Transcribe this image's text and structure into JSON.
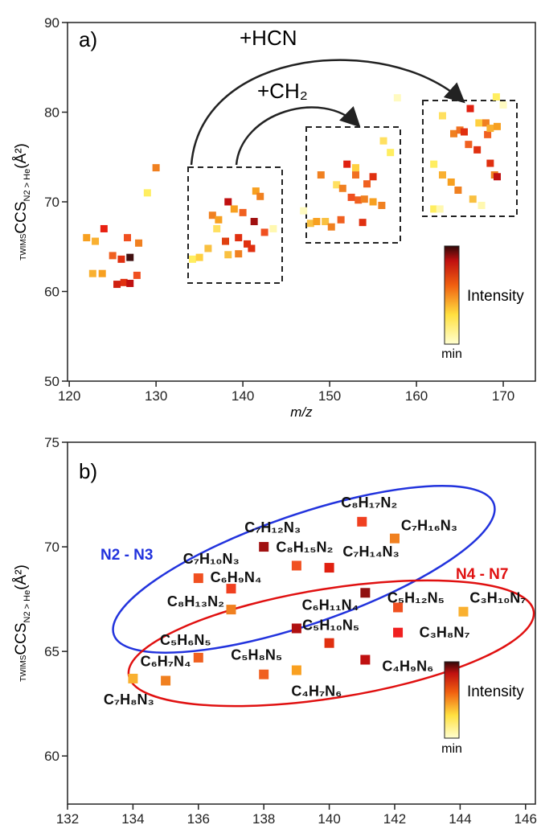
{
  "chart_data": [
    {
      "type": "scatter",
      "panel_label": "a)",
      "annotations": [
        "+HCN",
        "+CH₂"
      ],
      "x_label": "m/z",
      "y_label": {
        "prefix": "TWIMS",
        "main": "CCS",
        "sub": "N2 > He",
        "unit": "(Å²)"
      },
      "colorbar": {
        "label": "Intensity",
        "min_label": "min"
      },
      "xlim": [
        119.8,
        173.7
      ],
      "ylim": [
        50,
        90
      ],
      "xticks": [
        120,
        130,
        140,
        150,
        160,
        170
      ],
      "yticks": [
        50,
        60,
        70,
        80,
        90
      ],
      "x": [
        122,
        123,
        124,
        122.7,
        123.8,
        125,
        125.5,
        126.3,
        126,
        127,
        127,
        126.7,
        127.8,
        128,
        129,
        130,
        134.2,
        135,
        136,
        136.5,
        137.2,
        137,
        138,
        138.3,
        139,
        138.3,
        139.5,
        139.5,
        140,
        140.5,
        141.3,
        141,
        141.5,
        142,
        142.5,
        143.5,
        147,
        147.8,
        148.5,
        149,
        149.5,
        150.2,
        150.8,
        151.5,
        151.3,
        152,
        152.5,
        153,
        153,
        153.3,
        153.8,
        154.3,
        154,
        155,
        155,
        156.2,
        156,
        157,
        157.8,
        162,
        162,
        162.7,
        163,
        163,
        164,
        164.3,
        164.8,
        165,
        165.5,
        166,
        166.2,
        166.5,
        167,
        167.2,
        167.5,
        168,
        168.5,
        168.2,
        168.5,
        169,
        169.3,
        169.3,
        169.2,
        170
      ],
      "values": [
        66,
        65.6,
        67,
        62,
        62,
        64,
        60.8,
        61,
        63.6,
        63.8,
        60.9,
        66,
        61.8,
        65.4,
        71,
        73.8,
        63.6,
        63.8,
        64.8,
        68.5,
        68,
        67,
        65.6,
        70,
        69.2,
        64.1,
        66,
        64.2,
        68.8,
        65.3,
        67.8,
        64.8,
        71.2,
        70.6,
        66.6,
        67,
        69,
        67.6,
        67.8,
        73,
        67.8,
        67.2,
        71.9,
        71.5,
        68,
        74.2,
        70.5,
        73,
        73.8,
        70.2,
        67.7,
        72,
        70.3,
        72.8,
        70,
        76.8,
        69.6,
        75.5,
        81.6,
        74.2,
        69.2,
        69.2,
        79.6,
        73,
        72.2,
        77.6,
        71.3,
        78,
        77.8,
        76.4,
        80.4,
        70.3,
        75.8,
        78.8,
        69.6,
        78.8,
        74.3,
        77.5,
        78.2,
        73,
        72.8,
        78.4,
        81.7,
        80.8
      ],
      "colors": [
        "#f7a020",
        "#f9b030",
        "#e82010",
        "#f9b030",
        "#f7a020",
        "#f06020",
        "#d02010",
        "#e03010",
        "#e03010",
        "#401010",
        "#c01010",
        "#f05020",
        "#f05020",
        "#f08020",
        "#ffee60",
        "#f08020",
        "#ffee60",
        "#ffd040",
        "#f9c040",
        "#f08020",
        "#f7a020",
        "#ffe060",
        "#e04010",
        "#c01010",
        "#f7a020",
        "#f9c040",
        "#e03010",
        "#f08020",
        "#f06020",
        "#e03010",
        "#a01010",
        "#e03010",
        "#f7a020",
        "#f08020",
        "#f05020",
        "#fff8b0",
        "#fffac0",
        "#f9c040",
        "#f7a020",
        "#f08020",
        "#f9c040",
        "#f08020",
        "#ffe060",
        "#f08020",
        "#f06020",
        "#e02010",
        "#f05020",
        "#f07020",
        "#ffd040",
        "#f06020",
        "#e03010",
        "#f06020",
        "#f08020",
        "#e03010",
        "#f7a020",
        "#ffe060",
        "#f08020",
        "#ffee60",
        "#fffac0",
        "#ffee60",
        "#ffee60",
        "#fff8b0",
        "#ffe060",
        "#f9b030",
        "#f7a020",
        "#f08020",
        "#f08020",
        "#f07020",
        "#e03010",
        "#f06020",
        "#e02010",
        "#f9c040",
        "#e03010",
        "#ffd040",
        "#fff8b0",
        "#f08020",
        "#e03010",
        "#f06020",
        "#f9b030",
        "#f08020",
        "#c01010",
        "#f7a020",
        "#ffee60",
        "#fffac0"
      ]
    },
    {
      "type": "scatter",
      "panel_label": "b)",
      "annotations": [
        "N2 - N3",
        "N4 - N7"
      ],
      "x_label": "m/z",
      "y_label": {
        "prefix": "TWIMS",
        "main": "CCS",
        "sub": "N2 > He",
        "unit": "(Å²)"
      },
      "colorbar": {
        "label": "Intensity",
        "min_label": "min"
      },
      "xlim": [
        132,
        146.3
      ],
      "ylim": [
        57.7,
        75
      ],
      "xticks": [
        132,
        134,
        136,
        138,
        140,
        142,
        144,
        146
      ],
      "yticks": [
        60,
        65,
        70,
        75
      ],
      "x": [
        134,
        135,
        136,
        138,
        139,
        137,
        137,
        136,
        138,
        139,
        140,
        141,
        142,
        139,
        140,
        141.1,
        142.1,
        144.1,
        142.1,
        141.1
      ],
      "values": [
        63.7,
        63.6,
        64.7,
        63.9,
        64.1,
        67,
        68,
        68.5,
        70,
        69.1,
        69,
        71.2,
        70.4,
        66.1,
        65.4,
        67.8,
        67.1,
        66.9,
        65.9,
        64.6
      ],
      "labels": [
        "C₇H₈N₃",
        "C₆H₇N₄",
        "C₅H₆N₅",
        "C₅H₈N₅",
        "C₄H₇N₆",
        "C₈H₁₃N₂",
        "C₆H₉N₄",
        "C₇H₁₀N₃",
        "C₇H₁₂N₃",
        "C₈H₁₅N₂",
        "C₇H₁₄N₃",
        "C₈H₁₇N₂",
        "C₇H₁₆N₃",
        "C₆H₁₁N₄",
        "C₅H₁₀N₅",
        "C₅H₁₂N₅",
        null,
        "C₃H₁₀N₇",
        "C₃H₈N₇",
        "C₄H₉N₆"
      ],
      "colors": [
        "#f9b030",
        "#f08020",
        "#f06020",
        "#f06020",
        "#f9a020",
        "#f08020",
        "#f04020",
        "#f05020",
        "#a01010",
        "#f05020",
        "#e02010",
        "#f04020",
        "#f08020",
        "#b01010",
        "#e03010",
        "#901010",
        "#f05020",
        "#f9b030",
        "#f02020",
        "#c01010"
      ]
    }
  ]
}
